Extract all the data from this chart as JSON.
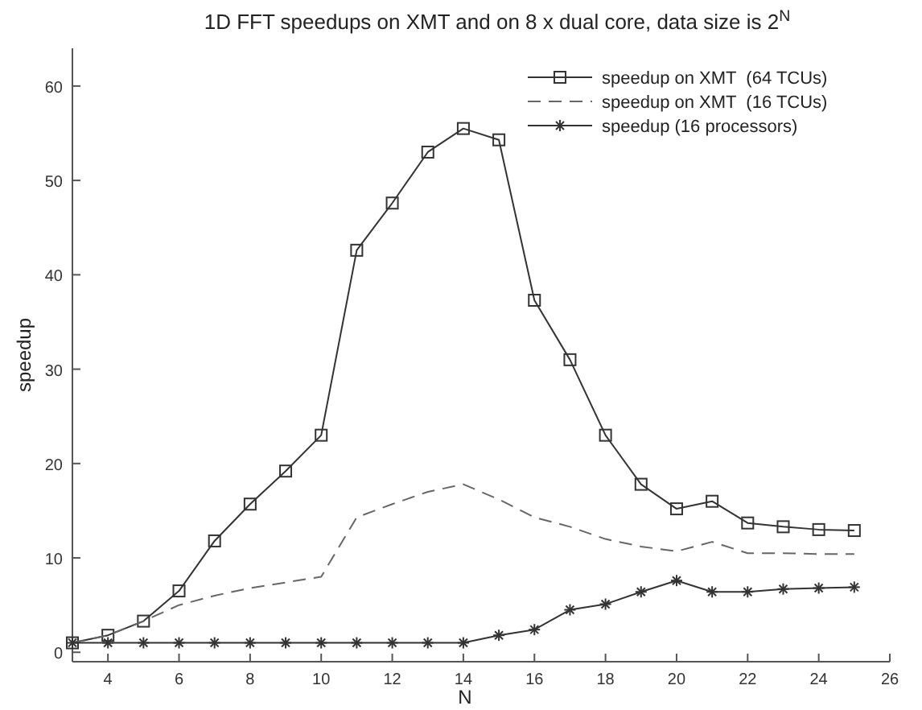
{
  "chart_data": {
    "type": "line",
    "title": "1D FFT speedups on XMT and on 8 x dual core, data size is 2$^{N}$",
    "xlabel": "N",
    "ylabel": "speedup",
    "x": [
      3,
      4,
      5,
      6,
      7,
      8,
      9,
      10,
      11,
      12,
      13,
      14,
      15,
      16,
      17,
      18,
      19,
      20,
      21,
      22,
      23,
      24,
      25
    ],
    "series": [
      {
        "name": "speedup on XMT  (64 TCUs)",
        "color": "#333333",
        "marker": "square",
        "line_style": "solid",
        "values": [
          1,
          1.8,
          3.3,
          6.5,
          11.8,
          15.7,
          19.2,
          23,
          42.6,
          47.6,
          53,
          55.5,
          54.3,
          37.3,
          31,
          23,
          17.8,
          15.2,
          16,
          13.7,
          13.3,
          13,
          12.9
        ]
      },
      {
        "name": "speedup on XMT  (16 TCUs)",
        "color": "#666666",
        "marker": "none",
        "line_style": "dashed",
        "values": [
          1,
          1.8,
          3.3,
          5,
          6,
          6.8,
          7.4,
          8,
          14.3,
          15.7,
          17,
          17.8,
          16.2,
          14.3,
          13.3,
          12,
          11.2,
          10.7,
          11.7,
          10.5,
          10.5,
          10.4,
          10.4
        ]
      },
      {
        "name": "speedup (16 processors)",
        "color": "#333333",
        "marker": "cross",
        "line_style": "solid",
        "values": [
          1,
          1,
          1,
          1,
          1,
          1,
          1,
          1,
          1,
          1,
          1,
          1,
          1.8,
          2.4,
          4.5,
          5.1,
          6.4,
          7.6,
          6.4,
          6.4,
          6.7,
          6.8,
          6.9
        ]
      }
    ],
    "xlim": [
      3,
      26
    ],
    "ylim": [
      -1,
      64
    ],
    "xticks": [
      4,
      6,
      8,
      10,
      12,
      14,
      16,
      18,
      20,
      22,
      24,
      26
    ],
    "yticks": [
      0,
      10,
      20,
      30,
      40,
      50,
      60
    ],
    "grid": false,
    "legend": "top right"
  }
}
